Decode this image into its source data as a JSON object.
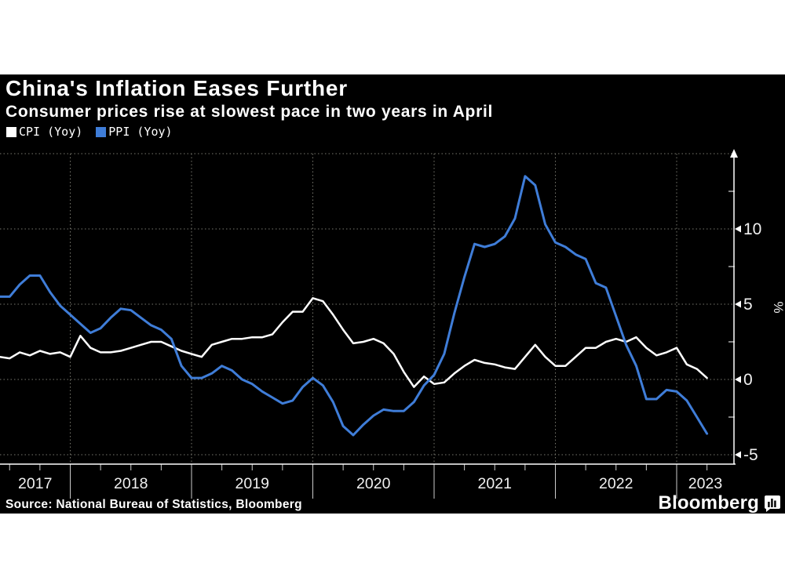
{
  "header": {
    "title": "China's Inflation Eases Further",
    "subtitle": "Consumer prices rise at slowest pace in two years in April"
  },
  "legend": [
    {
      "label": "CPI (Yoy)",
      "color": "#ffffff"
    },
    {
      "label": "PPI (Yoy)",
      "color": "#3f7dd8"
    }
  ],
  "footer": {
    "source": "Source: National Bureau of Statistics, Bloomberg",
    "brand": "Bloomberg"
  },
  "colors": {
    "page_background": "#ffffff",
    "card_background": "#000000",
    "axis": "#ffffff",
    "grid": "#78786e",
    "tick_label": "#f0f0f0",
    "year_divider": "#cccccc",
    "cpi_line": "#ffffff",
    "ppi_line": "#3f7dd8"
  },
  "chart_data": {
    "type": "line",
    "title": "China's Inflation Eases Further",
    "subtitle": "Consumer prices rise at slowest pace in two years in April",
    "unit": "%",
    "frequency": "monthly",
    "grid": "dotted",
    "legend_position": "top-left",
    "x": [
      "2017-05",
      "2017-06",
      "2017-07",
      "2017-08",
      "2017-09",
      "2017-10",
      "2017-11",
      "2017-12",
      "2018-01",
      "2018-02",
      "2018-03",
      "2018-04",
      "2018-05",
      "2018-06",
      "2018-07",
      "2018-08",
      "2018-09",
      "2018-10",
      "2018-11",
      "2018-12",
      "2019-01",
      "2019-02",
      "2019-03",
      "2019-04",
      "2019-05",
      "2019-06",
      "2019-07",
      "2019-08",
      "2019-09",
      "2019-10",
      "2019-11",
      "2019-12",
      "2020-01",
      "2020-02",
      "2020-03",
      "2020-04",
      "2020-05",
      "2020-06",
      "2020-07",
      "2020-08",
      "2020-09",
      "2020-10",
      "2020-11",
      "2020-12",
      "2021-01",
      "2021-02",
      "2021-03",
      "2021-04",
      "2021-05",
      "2021-06",
      "2021-07",
      "2021-08",
      "2021-09",
      "2021-10",
      "2021-11",
      "2021-12",
      "2022-01",
      "2022-02",
      "2022-03",
      "2022-04",
      "2022-05",
      "2022-06",
      "2022-07",
      "2022-08",
      "2022-09",
      "2022-10",
      "2022-11",
      "2022-12",
      "2023-01",
      "2023-02",
      "2023-03",
      "2023-04"
    ],
    "series": [
      {
        "name": "CPI (Yoy)",
        "color": "#ffffff",
        "width": 2.5,
        "values": [
          1.5,
          1.5,
          1.4,
          1.8,
          1.6,
          1.9,
          1.7,
          1.8,
          1.5,
          2.9,
          2.1,
          1.8,
          1.8,
          1.9,
          2.1,
          2.3,
          2.5,
          2.5,
          2.2,
          1.9,
          1.7,
          1.5,
          2.3,
          2.5,
          2.7,
          2.7,
          2.8,
          2.8,
          3.0,
          3.8,
          4.5,
          4.5,
          5.4,
          5.2,
          4.3,
          3.3,
          2.4,
          2.5,
          2.7,
          2.4,
          1.7,
          0.5,
          -0.5,
          0.2,
          -0.3,
          -0.2,
          0.4,
          0.9,
          1.3,
          1.1,
          1.0,
          0.8,
          0.7,
          1.5,
          2.3,
          1.5,
          0.9,
          0.9,
          1.5,
          2.1,
          2.1,
          2.5,
          2.7,
          2.5,
          2.8,
          2.1,
          1.6,
          1.8,
          2.1,
          1.0,
          0.7,
          0.1
        ]
      },
      {
        "name": "PPI (Yoy)",
        "color": "#3f7dd8",
        "width": 3,
        "values": [
          5.5,
          5.5,
          5.5,
          6.3,
          6.9,
          6.9,
          5.8,
          4.9,
          4.3,
          3.7,
          3.1,
          3.4,
          4.1,
          4.7,
          4.6,
          4.1,
          3.6,
          3.3,
          2.7,
          0.9,
          0.1,
          0.1,
          0.4,
          0.9,
          0.6,
          0.0,
          -0.3,
          -0.8,
          -1.2,
          -1.6,
          -1.4,
          -0.5,
          0.1,
          -0.4,
          -1.5,
          -3.1,
          -3.7,
          -3.0,
          -2.4,
          -2.0,
          -2.1,
          -2.1,
          -1.5,
          -0.4,
          0.3,
          1.7,
          4.4,
          6.8,
          9.0,
          8.8,
          9.0,
          9.5,
          10.7,
          13.5,
          12.9,
          10.3,
          9.1,
          8.8,
          8.3,
          8.0,
          6.4,
          6.1,
          4.2,
          2.3,
          0.9,
          -1.3,
          -1.3,
          -0.7,
          -0.8,
          -1.4,
          -2.5,
          -3.6
        ]
      }
    ],
    "y_axis": {
      "label": "%",
      "side": "right",
      "major_tick_labels": [
        10,
        5,
        0,
        -5
      ],
      "minor_ticks": [
        12.5,
        7.5,
        2.5,
        -2.5
      ],
      "gridlines": [
        15,
        10,
        5,
        0,
        -5
      ],
      "visible_range": [
        -5.6,
        15.3
      ]
    },
    "x_axis": {
      "year_labels": [
        "2017",
        "2018",
        "2019",
        "2020",
        "2021",
        "2022",
        "2023"
      ],
      "minor_tick_interval": "quarterly",
      "visible_range": [
        "2017-05",
        "2023-04"
      ]
    }
  }
}
